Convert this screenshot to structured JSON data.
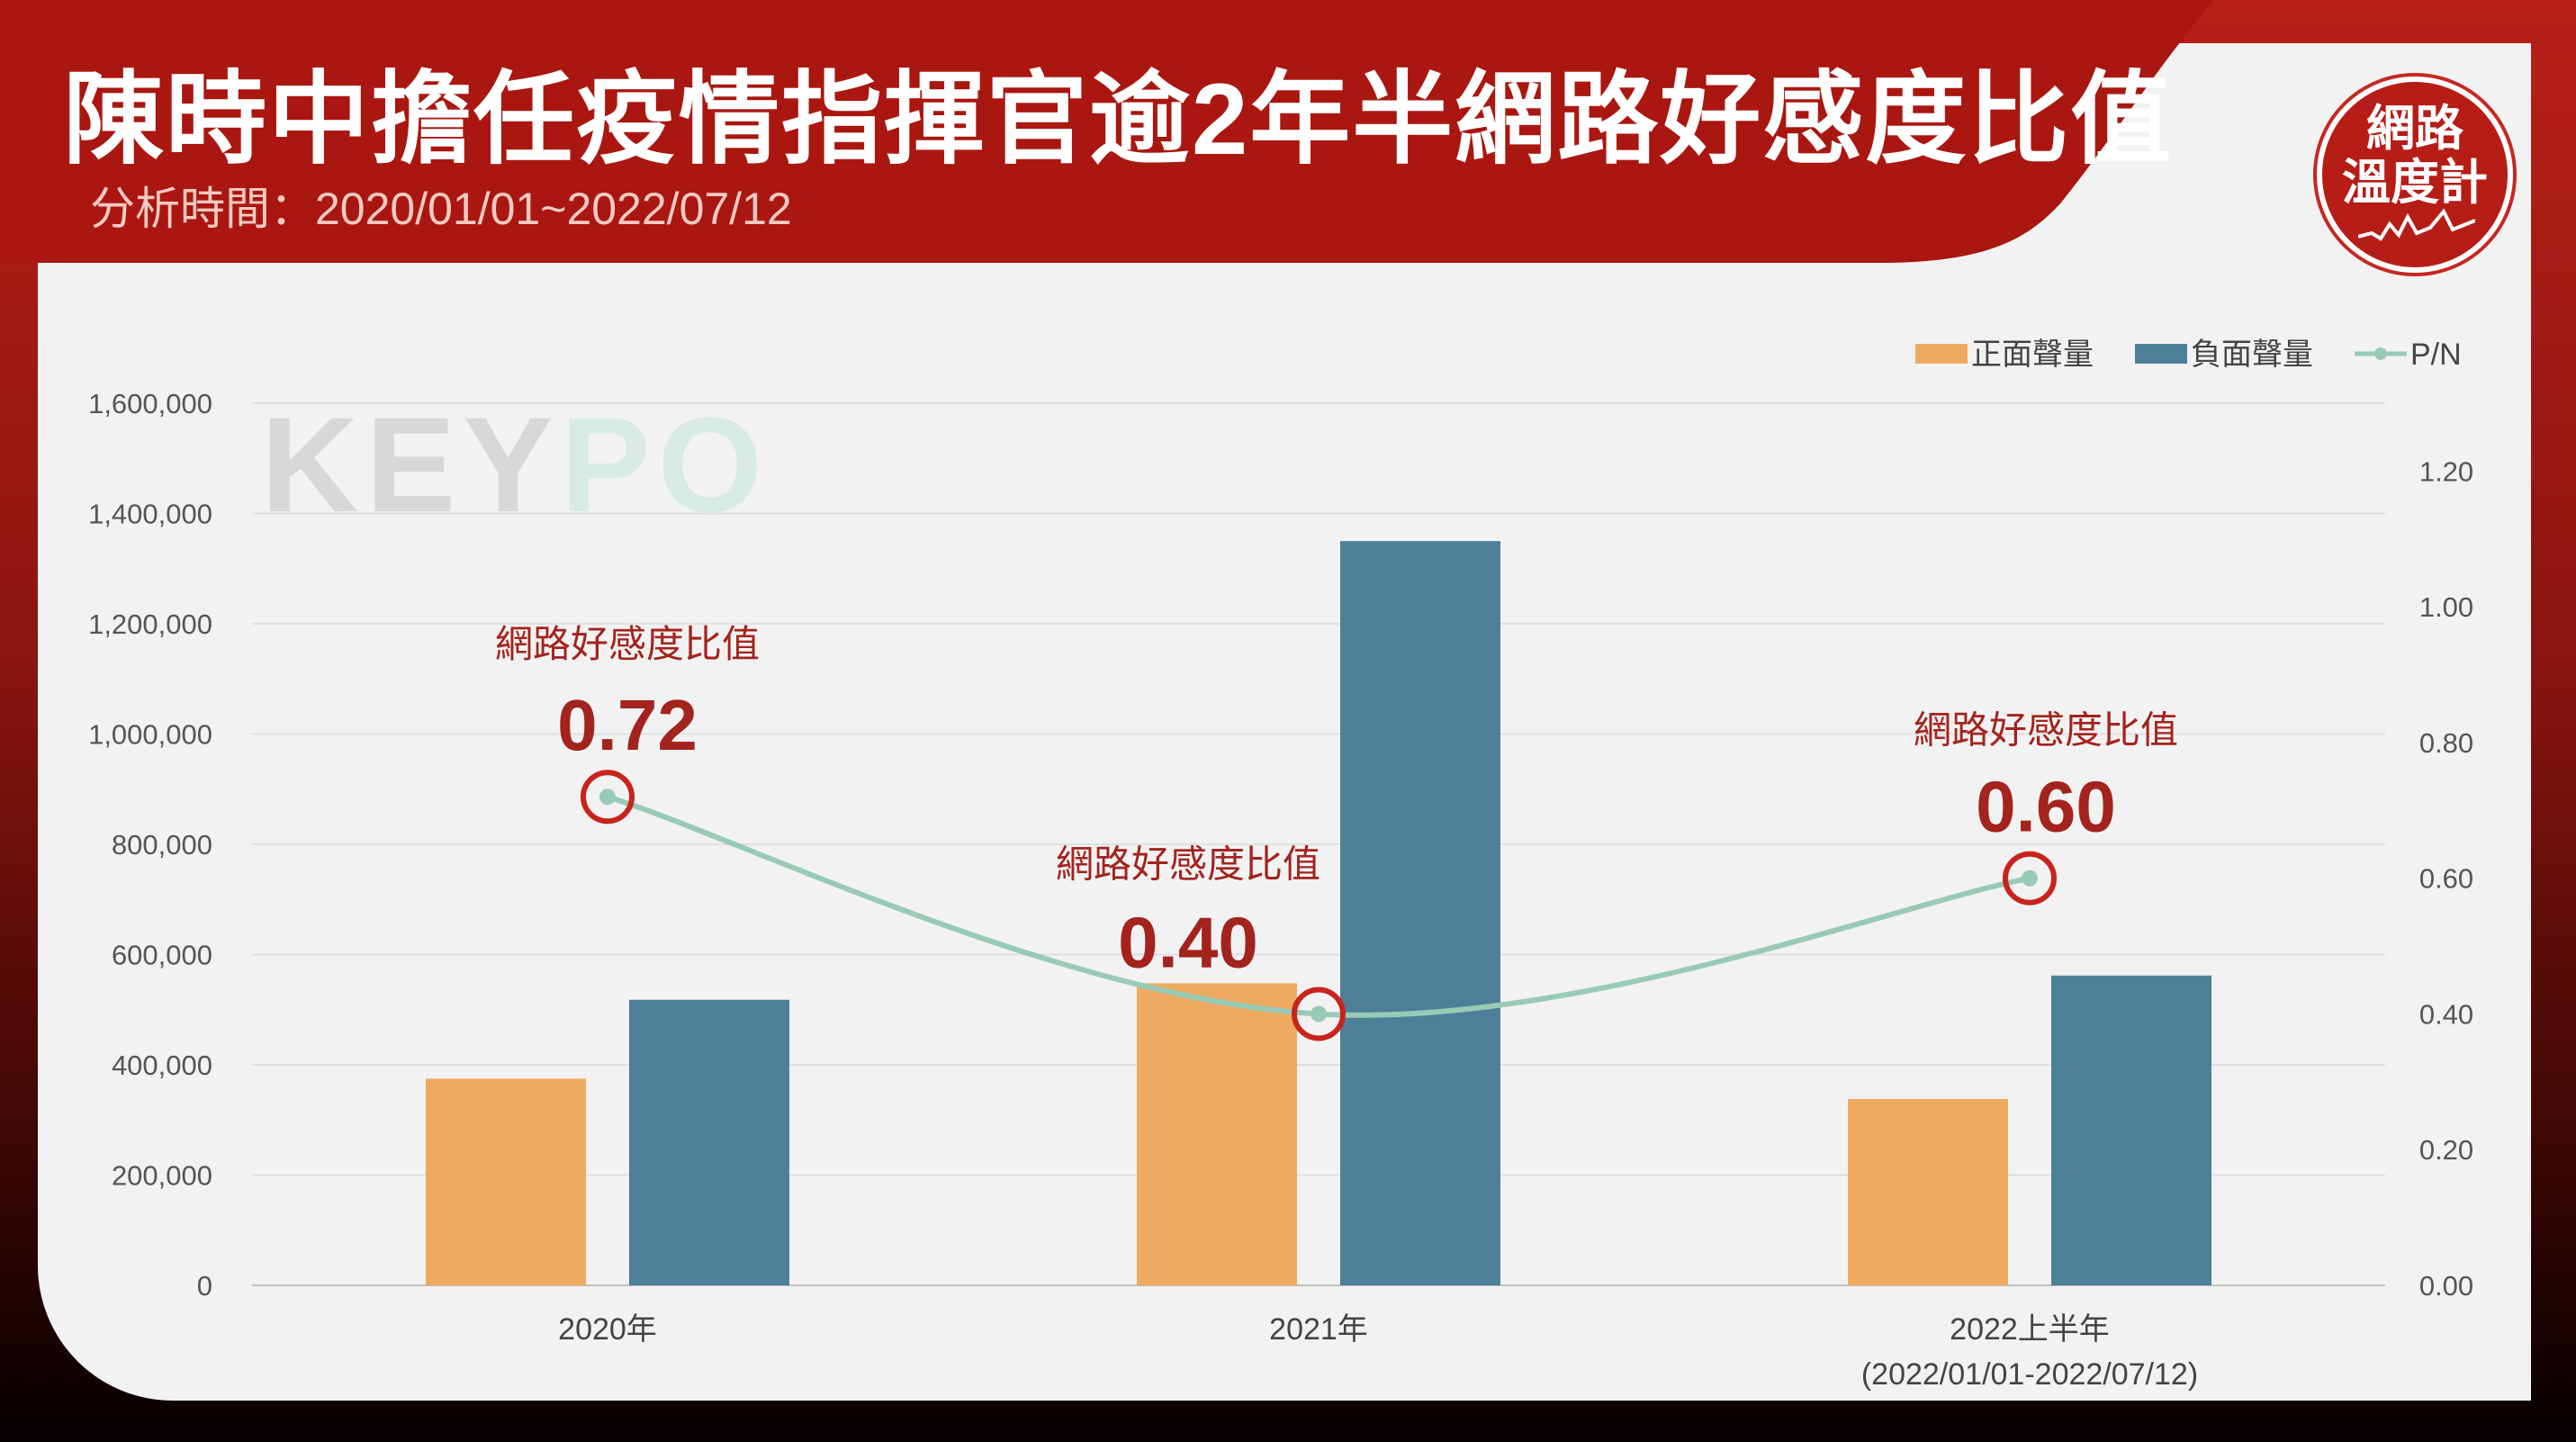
{
  "header": {
    "title": "陳時中擔任疫情指揮官逾2年半網路好感度比值",
    "subtitle": "分析時間：2020/01/01~2022/07/12"
  },
  "badge": {
    "line1": "網路",
    "line2": "溫度計"
  },
  "watermark": {
    "part1": "KEY",
    "part2": "PO"
  },
  "colors": {
    "header_red": "#a91710",
    "positive": "#efaa62",
    "negative": "#4e7f99",
    "pn_line": "#98cbb6",
    "annotation": "#a3231d"
  },
  "chart_data": {
    "type": "bar",
    "categories": [
      "2020年",
      "2021年",
      "2022上半年"
    ],
    "category_sublabels": [
      "",
      "",
      "(2022/01/01-2022/07/12)"
    ],
    "series": [
      {
        "name": "正面聲量",
        "type": "bar",
        "axis": "left",
        "values": [
          375000,
          548000,
          338000
        ]
      },
      {
        "name": "負面聲量",
        "type": "bar",
        "axis": "left",
        "values": [
          518000,
          1350000,
          562000
        ]
      },
      {
        "name": "P/N",
        "type": "line",
        "axis": "right",
        "values": [
          0.72,
          0.4,
          0.6
        ]
      }
    ],
    "y_left": {
      "ylim": [
        0,
        1600000
      ],
      "ticks": [
        "0",
        "200,000",
        "400,000",
        "600,000",
        "800,000",
        "1,000,000",
        "1,200,000",
        "1,400,000",
        "1,600,000"
      ]
    },
    "y_right": {
      "ylim": [
        0,
        1.3
      ],
      "tick_values": [
        0,
        0.2,
        0.4,
        0.6,
        0.8,
        1.0,
        1.2
      ],
      "ticks": [
        "0.00",
        "0.20",
        "0.40",
        "0.60",
        "0.80",
        "1.00",
        "1.20"
      ]
    },
    "legend_position": "top-right",
    "grid": true,
    "annotations": [
      {
        "label": "網路好感度比值",
        "value": "0.72"
      },
      {
        "label": "網路好感度比值",
        "value": "0.40"
      },
      {
        "label": "網路好感度比值",
        "value": "0.60"
      }
    ]
  }
}
